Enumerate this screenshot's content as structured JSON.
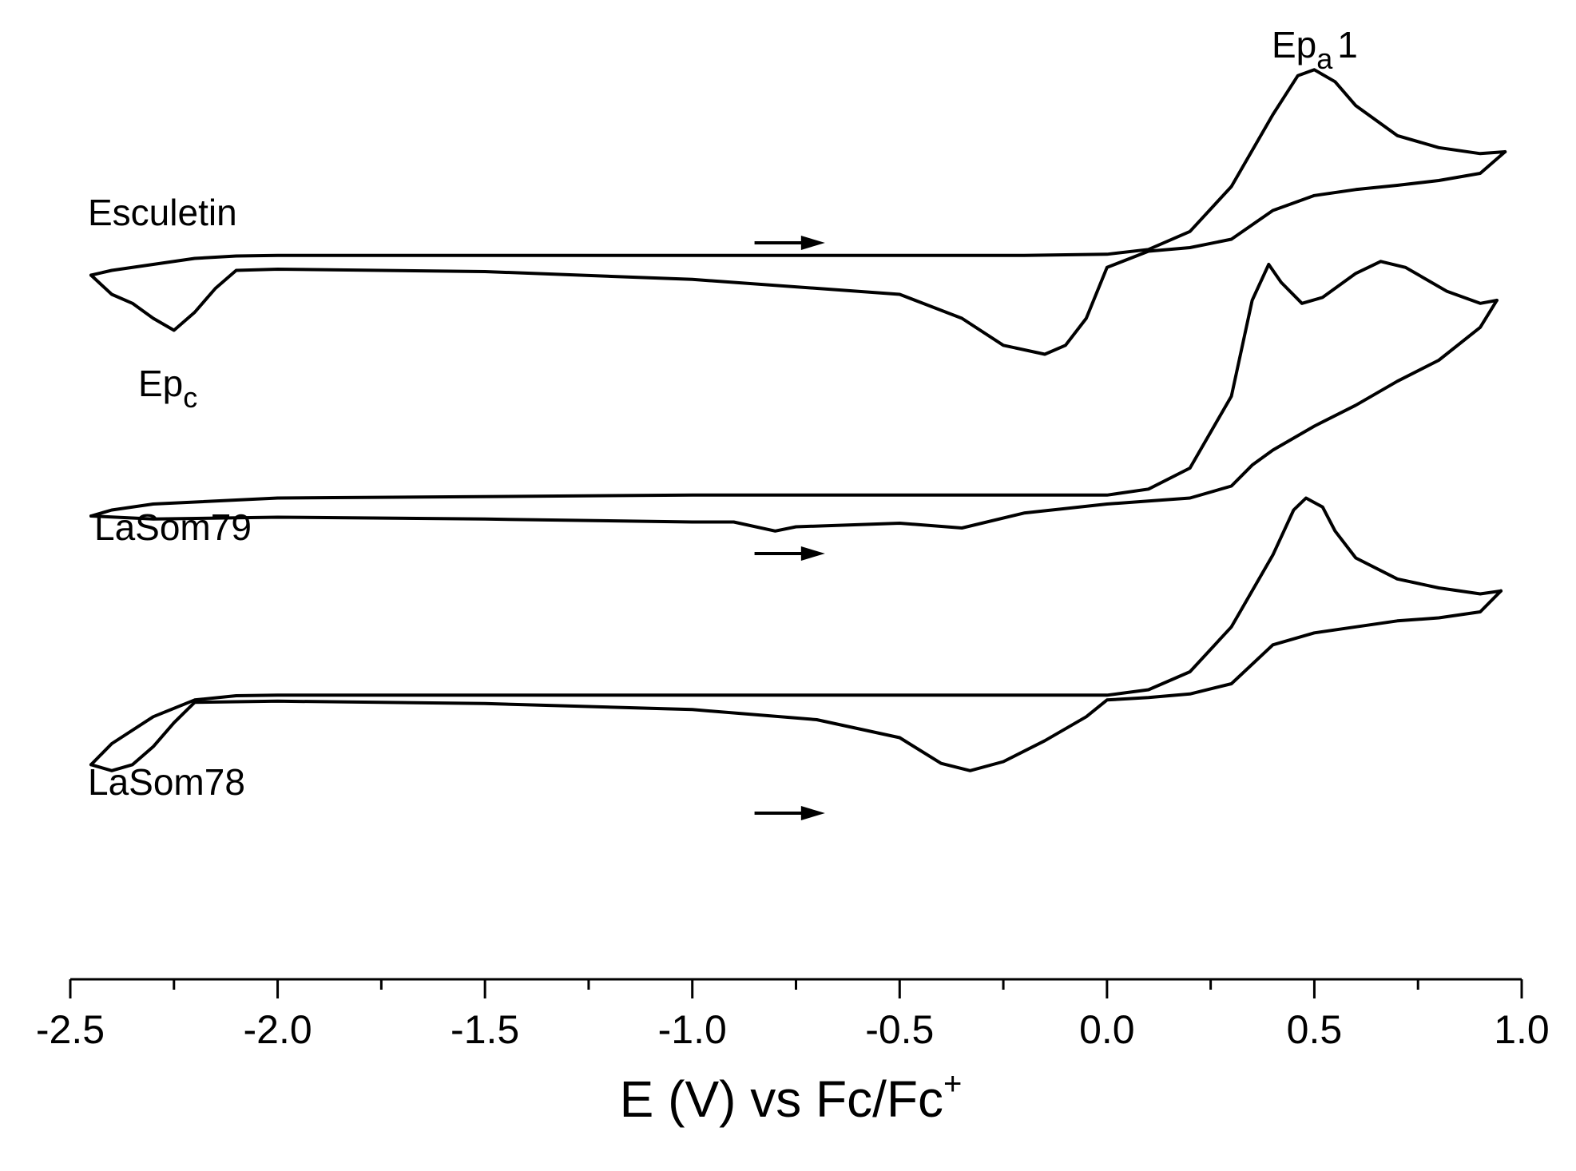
{
  "chart_data": {
    "type": "line",
    "title": "",
    "xlabel": "E (V) vs Fc/Fc",
    "xlabel_sup": "+",
    "ylabel": "",
    "xlim": [
      -2.5,
      1.0
    ],
    "grid": false,
    "x_ticks": [
      -2.5,
      -2.0,
      -1.5,
      -1.0,
      -0.5,
      0.0,
      0.5,
      1.0
    ],
    "x_tick_labels": [
      "-2.5",
      "-2.0",
      "-1.5",
      "-1.0",
      "-0.5",
      "0.0",
      "0.5",
      "1.0"
    ],
    "x_minor_step": 0.25,
    "y_units": "relative current (arbitrary units, traces vertically offset)",
    "series": [
      {
        "name": "Esculetin",
        "offset": 0,
        "scan_direction": "positive",
        "forward": [
          [
            -2.45,
            0.02
          ],
          [
            -2.4,
            0.1
          ],
          [
            -2.3,
            0.2
          ],
          [
            -2.2,
            0.3
          ],
          [
            -2.1,
            0.34
          ],
          [
            -2.0,
            0.35
          ],
          [
            -1.0,
            0.35
          ],
          [
            -0.2,
            0.35
          ],
          [
            0.0,
            0.37
          ],
          [
            0.1,
            0.45
          ],
          [
            0.2,
            0.75
          ],
          [
            0.3,
            1.5
          ],
          [
            0.4,
            2.7
          ],
          [
            0.46,
            3.35
          ],
          [
            0.5,
            3.45
          ],
          [
            0.55,
            3.25
          ],
          [
            0.6,
            2.85
          ],
          [
            0.7,
            2.35
          ],
          [
            0.8,
            2.15
          ],
          [
            0.9,
            2.05
          ],
          [
            0.96,
            2.08
          ]
        ],
        "reverse": [
          [
            0.96,
            2.08
          ],
          [
            0.9,
            1.72
          ],
          [
            0.8,
            1.6
          ],
          [
            0.7,
            1.52
          ],
          [
            0.6,
            1.45
          ],
          [
            0.5,
            1.35
          ],
          [
            0.4,
            1.1
          ],
          [
            0.3,
            0.62
          ],
          [
            0.2,
            0.48
          ],
          [
            0.1,
            0.42
          ],
          [
            0.0,
            0.15
          ],
          [
            -0.05,
            -0.7
          ],
          [
            -0.1,
            -1.15
          ],
          [
            -0.15,
            -1.3
          ],
          [
            -0.25,
            -1.15
          ],
          [
            -0.35,
            -0.7
          ],
          [
            -0.5,
            -0.3
          ],
          [
            -1.0,
            -0.05
          ],
          [
            -1.5,
            0.08
          ],
          [
            -2.0,
            0.12
          ],
          [
            -2.1,
            0.1
          ],
          [
            -2.15,
            -0.2
          ],
          [
            -2.2,
            -0.6
          ],
          [
            -2.25,
            -0.9
          ],
          [
            -2.3,
            -0.7
          ],
          [
            -2.35,
            -0.45
          ],
          [
            -2.4,
            -0.3
          ],
          [
            -2.45,
            0.02
          ]
        ]
      },
      {
        "name": "LaSom79",
        "offset": -4.0,
        "scan_direction": "positive",
        "forward": [
          [
            -2.45,
            0.0
          ],
          [
            -2.4,
            0.1
          ],
          [
            -2.3,
            0.2
          ],
          [
            -2.0,
            0.3
          ],
          [
            -1.0,
            0.35
          ],
          [
            0.0,
            0.35
          ],
          [
            0.1,
            0.45
          ],
          [
            0.2,
            0.8
          ],
          [
            0.3,
            2.0
          ],
          [
            0.35,
            3.6
          ],
          [
            0.39,
            4.2
          ],
          [
            0.42,
            3.9
          ],
          [
            0.47,
            3.55
          ],
          [
            0.52,
            3.65
          ],
          [
            0.6,
            4.05
          ],
          [
            0.66,
            4.25
          ],
          [
            0.72,
            4.15
          ],
          [
            0.82,
            3.75
          ],
          [
            0.9,
            3.55
          ],
          [
            0.94,
            3.6
          ]
        ],
        "reverse": [
          [
            0.94,
            3.6
          ],
          [
            0.9,
            3.15
          ],
          [
            0.8,
            2.6
          ],
          [
            0.7,
            2.25
          ],
          [
            0.6,
            1.85
          ],
          [
            0.5,
            1.5
          ],
          [
            0.4,
            1.1
          ],
          [
            0.35,
            0.85
          ],
          [
            0.3,
            0.5
          ],
          [
            0.2,
            0.3
          ],
          [
            0.1,
            0.25
          ],
          [
            0.0,
            0.2
          ],
          [
            -0.2,
            0.05
          ],
          [
            -0.35,
            -0.2
          ],
          [
            -0.5,
            -0.12
          ],
          [
            -0.75,
            -0.18
          ],
          [
            -0.8,
            -0.25
          ],
          [
            -0.9,
            -0.1
          ],
          [
            -1.0,
            -0.1
          ],
          [
            -1.5,
            -0.05
          ],
          [
            -2.0,
            -0.02
          ],
          [
            -2.3,
            -0.05
          ],
          [
            -2.45,
            0.0
          ]
        ]
      },
      {
        "name": "LaSom78",
        "offset": -7.35,
        "scan_direction": "positive",
        "forward": [
          [
            -2.45,
            -0.8
          ],
          [
            -2.4,
            -0.45
          ],
          [
            -2.3,
            0.0
          ],
          [
            -2.2,
            0.28
          ],
          [
            -2.1,
            0.35
          ],
          [
            -2.0,
            0.36
          ],
          [
            -1.0,
            0.36
          ],
          [
            -0.5,
            0.36
          ],
          [
            0.0,
            0.36
          ],
          [
            0.1,
            0.45
          ],
          [
            0.2,
            0.75
          ],
          [
            0.3,
            1.5
          ],
          [
            0.4,
            2.7
          ],
          [
            0.45,
            3.45
          ],
          [
            0.48,
            3.65
          ],
          [
            0.52,
            3.5
          ],
          [
            0.55,
            3.1
          ],
          [
            0.6,
            2.65
          ],
          [
            0.7,
            2.3
          ],
          [
            0.8,
            2.15
          ],
          [
            0.9,
            2.05
          ],
          [
            0.95,
            2.1
          ]
        ],
        "reverse": [
          [
            0.95,
            2.1
          ],
          [
            0.9,
            1.75
          ],
          [
            0.8,
            1.65
          ],
          [
            0.7,
            1.6
          ],
          [
            0.6,
            1.5
          ],
          [
            0.5,
            1.4
          ],
          [
            0.4,
            1.2
          ],
          [
            0.3,
            0.55
          ],
          [
            0.2,
            0.38
          ],
          [
            0.1,
            0.32
          ],
          [
            0.0,
            0.28
          ],
          [
            -0.05,
            0.0
          ],
          [
            -0.15,
            -0.4
          ],
          [
            -0.25,
            -0.75
          ],
          [
            -0.33,
            -0.9
          ],
          [
            -0.4,
            -0.78
          ],
          [
            -0.5,
            -0.35
          ],
          [
            -0.7,
            -0.05
          ],
          [
            -1.0,
            0.12
          ],
          [
            -1.5,
            0.22
          ],
          [
            -2.0,
            0.26
          ],
          [
            -2.2,
            0.24
          ],
          [
            -2.25,
            -0.1
          ],
          [
            -2.3,
            -0.5
          ],
          [
            -2.35,
            -0.8
          ],
          [
            -2.4,
            -0.9
          ],
          [
            -2.45,
            -0.8
          ]
        ]
      }
    ],
    "annotations": [
      {
        "id": "epa1",
        "main": "Ep",
        "sub": "a",
        "suffix": "1",
        "series": "Esculetin",
        "x": 0.5
      },
      {
        "id": "epc",
        "main": "Ep",
        "sub": "c",
        "suffix": "",
        "series": "Esculetin",
        "x": -2.25
      }
    ],
    "scan_arrows": [
      {
        "series": "Esculetin",
        "x_start": -0.85,
        "x_end": -0.68
      },
      {
        "series": "LaSom79",
        "x_start": -0.85,
        "x_end": -0.68
      },
      {
        "series": "LaSom78",
        "x_start": -0.85,
        "x_end": -0.68
      }
    ]
  }
}
